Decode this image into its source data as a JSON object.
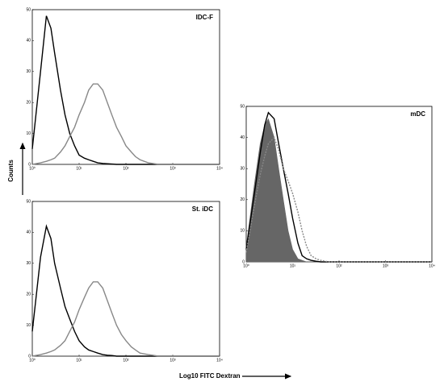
{
  "axis_labels": {
    "y": "Counts",
    "x": "Log10 FITC Dextran"
  },
  "chart_data": [
    {
      "type": "line",
      "title": "IDC-F",
      "log_x": true,
      "x": [
        1,
        1.5,
        2,
        2.5,
        3,
        4,
        5,
        6.3,
        8,
        10,
        13,
        16,
        20,
        25,
        32,
        40,
        50,
        63,
        80,
        100,
        130,
        160,
        200,
        300,
        500,
        1000,
        10000
      ],
      "series": [
        {
          "color": "#000000",
          "values": [
            5,
            30,
            48,
            44,
            36,
            24,
            16,
            10,
            6,
            3,
            2,
            1.5,
            1,
            0.5,
            0.3,
            0.2,
            0.1,
            0,
            0,
            0,
            0,
            0,
            0,
            0,
            0,
            0,
            0
          ]
        },
        {
          "color": "#888888",
          "values": [
            0,
            0.5,
            1,
            1.5,
            2,
            4,
            6,
            9,
            12,
            16,
            20,
            24,
            26,
            26,
            24,
            20,
            16,
            12,
            9,
            6,
            4,
            2.5,
            1.5,
            0.5,
            0,
            0,
            0
          ]
        }
      ],
      "xlim": [
        1,
        10000
      ],
      "xticks": [
        {
          "value": 1,
          "label": "10⁰"
        },
        {
          "value": 10,
          "label": "10¹"
        },
        {
          "value": 100,
          "label": "10²"
        },
        {
          "value": 1000,
          "label": "10³"
        },
        {
          "value": 10000,
          "label": "10⁴"
        }
      ],
      "ylim": [
        0,
        50
      ],
      "yticks": [
        0,
        10,
        20,
        30,
        40,
        50
      ]
    },
    {
      "type": "line",
      "title": "St. iDC",
      "log_x": true,
      "x": [
        1,
        1.5,
        2,
        2.5,
        3,
        4,
        5,
        6.3,
        8,
        10,
        13,
        16,
        20,
        25,
        32,
        40,
        50,
        63,
        80,
        100,
        130,
        160,
        200,
        300,
        500,
        1000,
        10000
      ],
      "series": [
        {
          "color": "#000000",
          "values": [
            8,
            32,
            42,
            38,
            30,
            22,
            16,
            12,
            8,
            5,
            3,
            2,
            1.5,
            1,
            0.5,
            0.3,
            0.2,
            0,
            0,
            0,
            0,
            0,
            0,
            0,
            0,
            0,
            0
          ]
        },
        {
          "color": "#888888",
          "values": [
            0,
            0.5,
            1,
            1.5,
            2,
            3.5,
            5,
            8,
            11,
            15,
            19,
            22,
            24,
            24,
            22,
            18,
            14,
            10,
            7,
            5,
            3,
            2,
            1,
            0.5,
            0,
            0,
            0
          ]
        }
      ],
      "xlim": [
        1,
        10000
      ],
      "xticks": [
        {
          "value": 1,
          "label": "10⁰"
        },
        {
          "value": 10,
          "label": "10¹"
        },
        {
          "value": 100,
          "label": "10²"
        },
        {
          "value": 1000,
          "label": "10³"
        },
        {
          "value": 10000,
          "label": "10⁴"
        }
      ],
      "ylim": [
        0,
        50
      ],
      "yticks": [
        0,
        10,
        20,
        30,
        40,
        50
      ]
    },
    {
      "type": "line",
      "title": "mDC",
      "log_x": true,
      "x": [
        1,
        1.5,
        2,
        2.5,
        3,
        4,
        5,
        6.3,
        8,
        10,
        13,
        16,
        20,
        25,
        32,
        40,
        50,
        63,
        80,
        100,
        130,
        160,
        200,
        300,
        500,
        1000,
        10000
      ],
      "series": [
        {
          "color": "#666666",
          "fill": true,
          "values": [
            5,
            25,
            38,
            44,
            46,
            40,
            30,
            20,
            10,
            4,
            1,
            0.5,
            0,
            0,
            0,
            0,
            0,
            0,
            0,
            0,
            0,
            0,
            0,
            0,
            0,
            0,
            0
          ]
        },
        {
          "color": "#000000",
          "values": [
            4,
            22,
            35,
            44,
            48,
            46,
            38,
            30,
            22,
            14,
            6,
            2,
            1,
            0.5,
            0.2,
            0,
            0,
            0,
            0,
            0,
            0,
            0,
            0,
            0,
            0,
            0,
            0
          ]
        },
        {
          "color": "#888888",
          "dash": true,
          "values": [
            3,
            18,
            28,
            34,
            38,
            40,
            36,
            30,
            26,
            22,
            16,
            10,
            5,
            2,
            1,
            0.5,
            0.2,
            0,
            0,
            0,
            0,
            0,
            0,
            0,
            0,
            0,
            0
          ]
        }
      ],
      "xlim": [
        1,
        10000
      ],
      "xticks": [
        {
          "value": 1,
          "label": "10⁰"
        },
        {
          "value": 10,
          "label": "10¹"
        },
        {
          "value": 100,
          "label": "10²"
        },
        {
          "value": 1000,
          "label": "10³"
        },
        {
          "value": 10000,
          "label": "10⁴"
        }
      ],
      "ylim": [
        0,
        50
      ],
      "yticks": [
        0,
        10,
        20,
        30,
        40,
        50
      ]
    }
  ]
}
